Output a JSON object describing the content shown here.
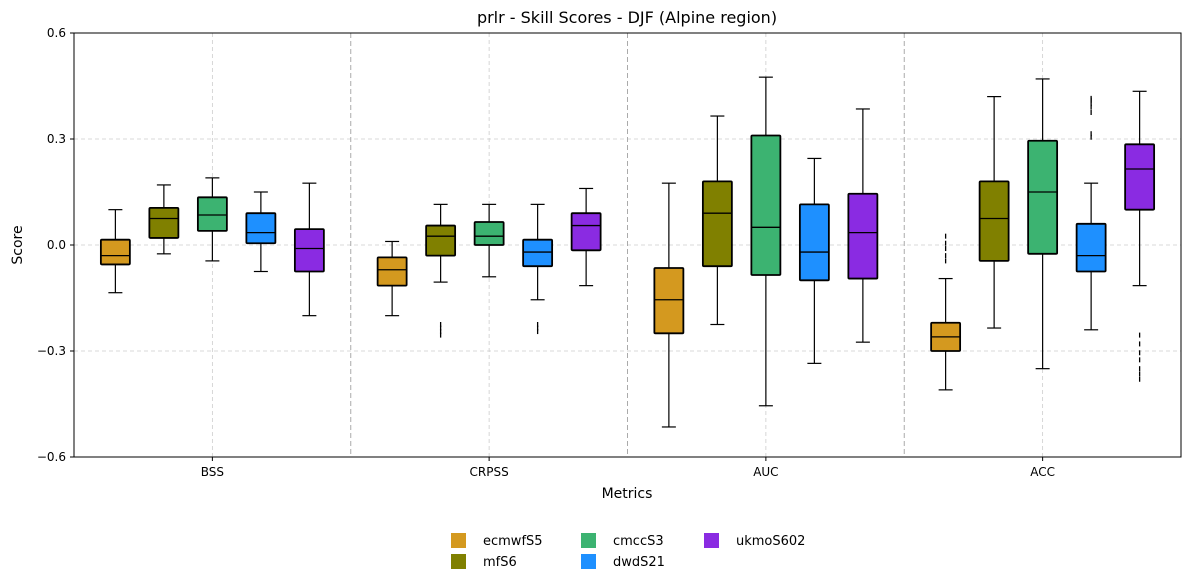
{
  "chart_data": {
    "type": "box",
    "title": "prlr - Skill Scores - DJF (Alpine region)",
    "xlabel": "Metrics",
    "ylabel": "Score",
    "ylim": [
      -0.6,
      0.6
    ],
    "yticks": [
      -0.6,
      -0.3,
      0.0,
      0.3,
      0.6
    ],
    "ytick_labels": [
      "−0.6",
      "−0.3",
      "0.0",
      "0.3",
      "0.6"
    ],
    "categories": [
      "BSS",
      "CRPSS",
      "AUC",
      "ACC"
    ],
    "grid": true,
    "legend_position": "bottom-center",
    "series": [
      {
        "name": "ecmwfS5",
        "color": "#D4991F",
        "boxes": [
          {
            "whislo": -0.135,
            "q1": -0.055,
            "med": -0.03,
            "q3": 0.015,
            "whishi": 0.1,
            "fliers": []
          },
          {
            "whislo": -0.2,
            "q1": -0.115,
            "med": -0.07,
            "q3": -0.035,
            "whishi": 0.01,
            "fliers": []
          },
          {
            "whislo": -0.515,
            "q1": -0.25,
            "med": -0.155,
            "q3": -0.065,
            "whishi": 0.175,
            "fliers": []
          },
          {
            "whislo": -0.41,
            "q1": -0.3,
            "med": -0.26,
            "q3": -0.22,
            "whishi": -0.095,
            "fliers": [
              -0.045,
              -0.03,
              -0.01,
              0.005,
              0.025
            ]
          }
        ]
      },
      {
        "name": "mfS6",
        "color": "#808000",
        "boxes": [
          {
            "whislo": -0.025,
            "q1": 0.02,
            "med": 0.075,
            "q3": 0.105,
            "whishi": 0.17,
            "fliers": []
          },
          {
            "whislo": -0.105,
            "q1": -0.03,
            "med": 0.025,
            "q3": 0.055,
            "whishi": 0.115,
            "fliers": [
              -0.255,
              -0.245,
              -0.235,
              -0.225
            ]
          },
          {
            "whislo": -0.225,
            "q1": -0.06,
            "med": 0.09,
            "q3": 0.18,
            "whishi": 0.365,
            "fliers": []
          },
          {
            "whislo": -0.235,
            "q1": -0.045,
            "med": 0.075,
            "q3": 0.18,
            "whishi": 0.42,
            "fliers": []
          }
        ]
      },
      {
        "name": "cmccS3",
        "color": "#3CB371",
        "boxes": [
          {
            "whislo": -0.045,
            "q1": 0.04,
            "med": 0.085,
            "q3": 0.135,
            "whishi": 0.19,
            "fliers": []
          },
          {
            "whislo": -0.09,
            "q1": 0.0,
            "med": 0.025,
            "q3": 0.065,
            "whishi": 0.115,
            "fliers": []
          },
          {
            "whislo": -0.455,
            "q1": -0.085,
            "med": 0.05,
            "q3": 0.31,
            "whishi": 0.475,
            "fliers": []
          },
          {
            "whislo": -0.35,
            "q1": -0.025,
            "med": 0.15,
            "q3": 0.295,
            "whishi": 0.47,
            "fliers": []
          }
        ]
      },
      {
        "name": "dwdS21",
        "color": "#1E90FF",
        "boxes": [
          {
            "whislo": -0.075,
            "q1": 0.005,
            "med": 0.035,
            "q3": 0.09,
            "whishi": 0.15,
            "fliers": []
          },
          {
            "whislo": -0.155,
            "q1": -0.06,
            "med": -0.02,
            "q3": 0.015,
            "whishi": 0.115,
            "fliers": [
              -0.245,
              -0.235,
              -0.225
            ]
          },
          {
            "whislo": -0.335,
            "q1": -0.1,
            "med": -0.02,
            "q3": 0.115,
            "whishi": 0.245,
            "fliers": []
          },
          {
            "whislo": -0.24,
            "q1": -0.075,
            "med": -0.03,
            "q3": 0.06,
            "whishi": 0.175,
            "fliers": [
              0.305,
              0.315,
              0.375,
              0.39,
              0.4,
              0.41,
              0.415
            ]
          }
        ]
      },
      {
        "name": "ukmoS602",
        "color": "#8A2BE2",
        "boxes": [
          {
            "whislo": -0.2,
            "q1": -0.075,
            "med": -0.01,
            "q3": 0.045,
            "whishi": 0.175,
            "fliers": []
          },
          {
            "whislo": -0.115,
            "q1": -0.015,
            "med": 0.055,
            "q3": 0.09,
            "whishi": 0.16,
            "fliers": []
          },
          {
            "whislo": -0.275,
            "q1": -0.095,
            "med": 0.035,
            "q3": 0.145,
            "whishi": 0.385,
            "fliers": []
          },
          {
            "whislo": -0.115,
            "q1": 0.1,
            "med": 0.215,
            "q3": 0.285,
            "whishi": 0.435,
            "fliers": [
              -0.38,
              -0.365,
              -0.35,
              -0.325,
              -0.305,
              -0.28,
              -0.255
            ]
          }
        ]
      }
    ]
  }
}
